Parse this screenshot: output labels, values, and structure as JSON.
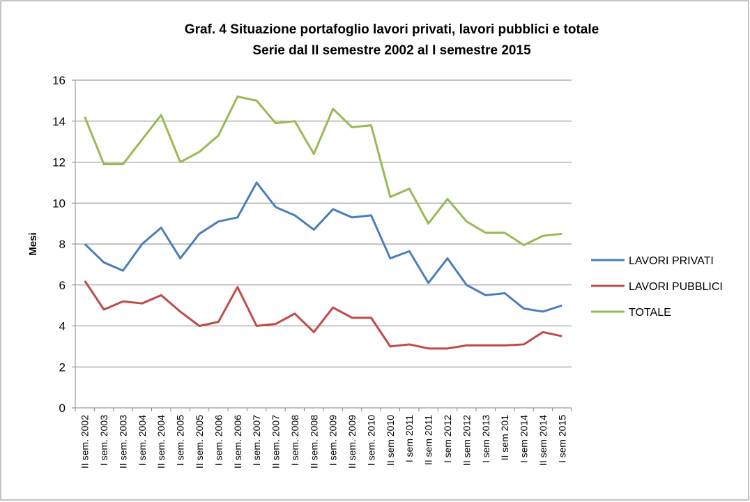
{
  "chart_data": {
    "type": "line",
    "title": "Graf. 4 Situazione portafoglio lavori privati, lavori pubblici e totale",
    "subtitle": "Serie dal II semestre 2002 al I semestre 2015",
    "y_label": "Mesi",
    "categories": [
      "II sem. 2002",
      "I sem. 2003",
      "II sem. 2003",
      "I sem. 2004",
      "II sem. 2004",
      "I sem. 2005",
      "II sem. 2005",
      "I sem. 2006",
      "II sem. 2006",
      "I sem. 2007",
      "II sem. 2007",
      "I sem. 2008",
      "II sem. 2008",
      "I sem. 2009",
      "II sem. 2009",
      "I sem. 2010",
      "II sem 2010",
      "I sem 2011",
      "II sem 2011",
      "I sem 2012",
      "II sem 2012",
      "I sem 2013",
      "II sem 201",
      "I sem 2014",
      "II sem 2014",
      "I sem 2015"
    ],
    "series": [
      {
        "name": "LAVORI PRIVATI",
        "color": "#4a7ebb",
        "values": [
          8.0,
          7.1,
          6.7,
          8.0,
          8.8,
          7.3,
          8.5,
          9.1,
          9.3,
          11.0,
          9.8,
          9.4,
          8.7,
          9.7,
          9.3,
          9.4,
          7.3,
          7.65,
          6.1,
          7.3,
          6.0,
          5.5,
          5.6,
          4.85,
          4.7,
          5.0
        ]
      },
      {
        "name": "LAVORI PUBBLICI",
        "color": "#be4b48",
        "values": [
          6.2,
          4.8,
          5.2,
          5.1,
          5.5,
          4.7,
          4.0,
          4.2,
          5.9,
          4.0,
          4.1,
          4.6,
          3.7,
          4.9,
          4.4,
          4.4,
          3.0,
          3.1,
          2.9,
          2.9,
          3.05,
          3.05,
          3.05,
          3.1,
          3.7,
          3.5
        ]
      },
      {
        "name": "TOTALE",
        "color": "#98b954",
        "values": [
          14.2,
          11.9,
          11.9,
          13.1,
          14.3,
          12.0,
          12.5,
          13.3,
          15.2,
          15.0,
          13.9,
          14.0,
          12.4,
          14.6,
          13.7,
          13.8,
          10.3,
          10.7,
          9.0,
          10.2,
          9.1,
          8.55,
          8.55,
          7.95,
          8.4,
          8.5
        ]
      }
    ],
    "ylim": [
      0,
      16
    ],
    "yticks": [
      0,
      2,
      4,
      6,
      8,
      10,
      12,
      14,
      16
    ],
    "grid": true,
    "legend": "right"
  }
}
